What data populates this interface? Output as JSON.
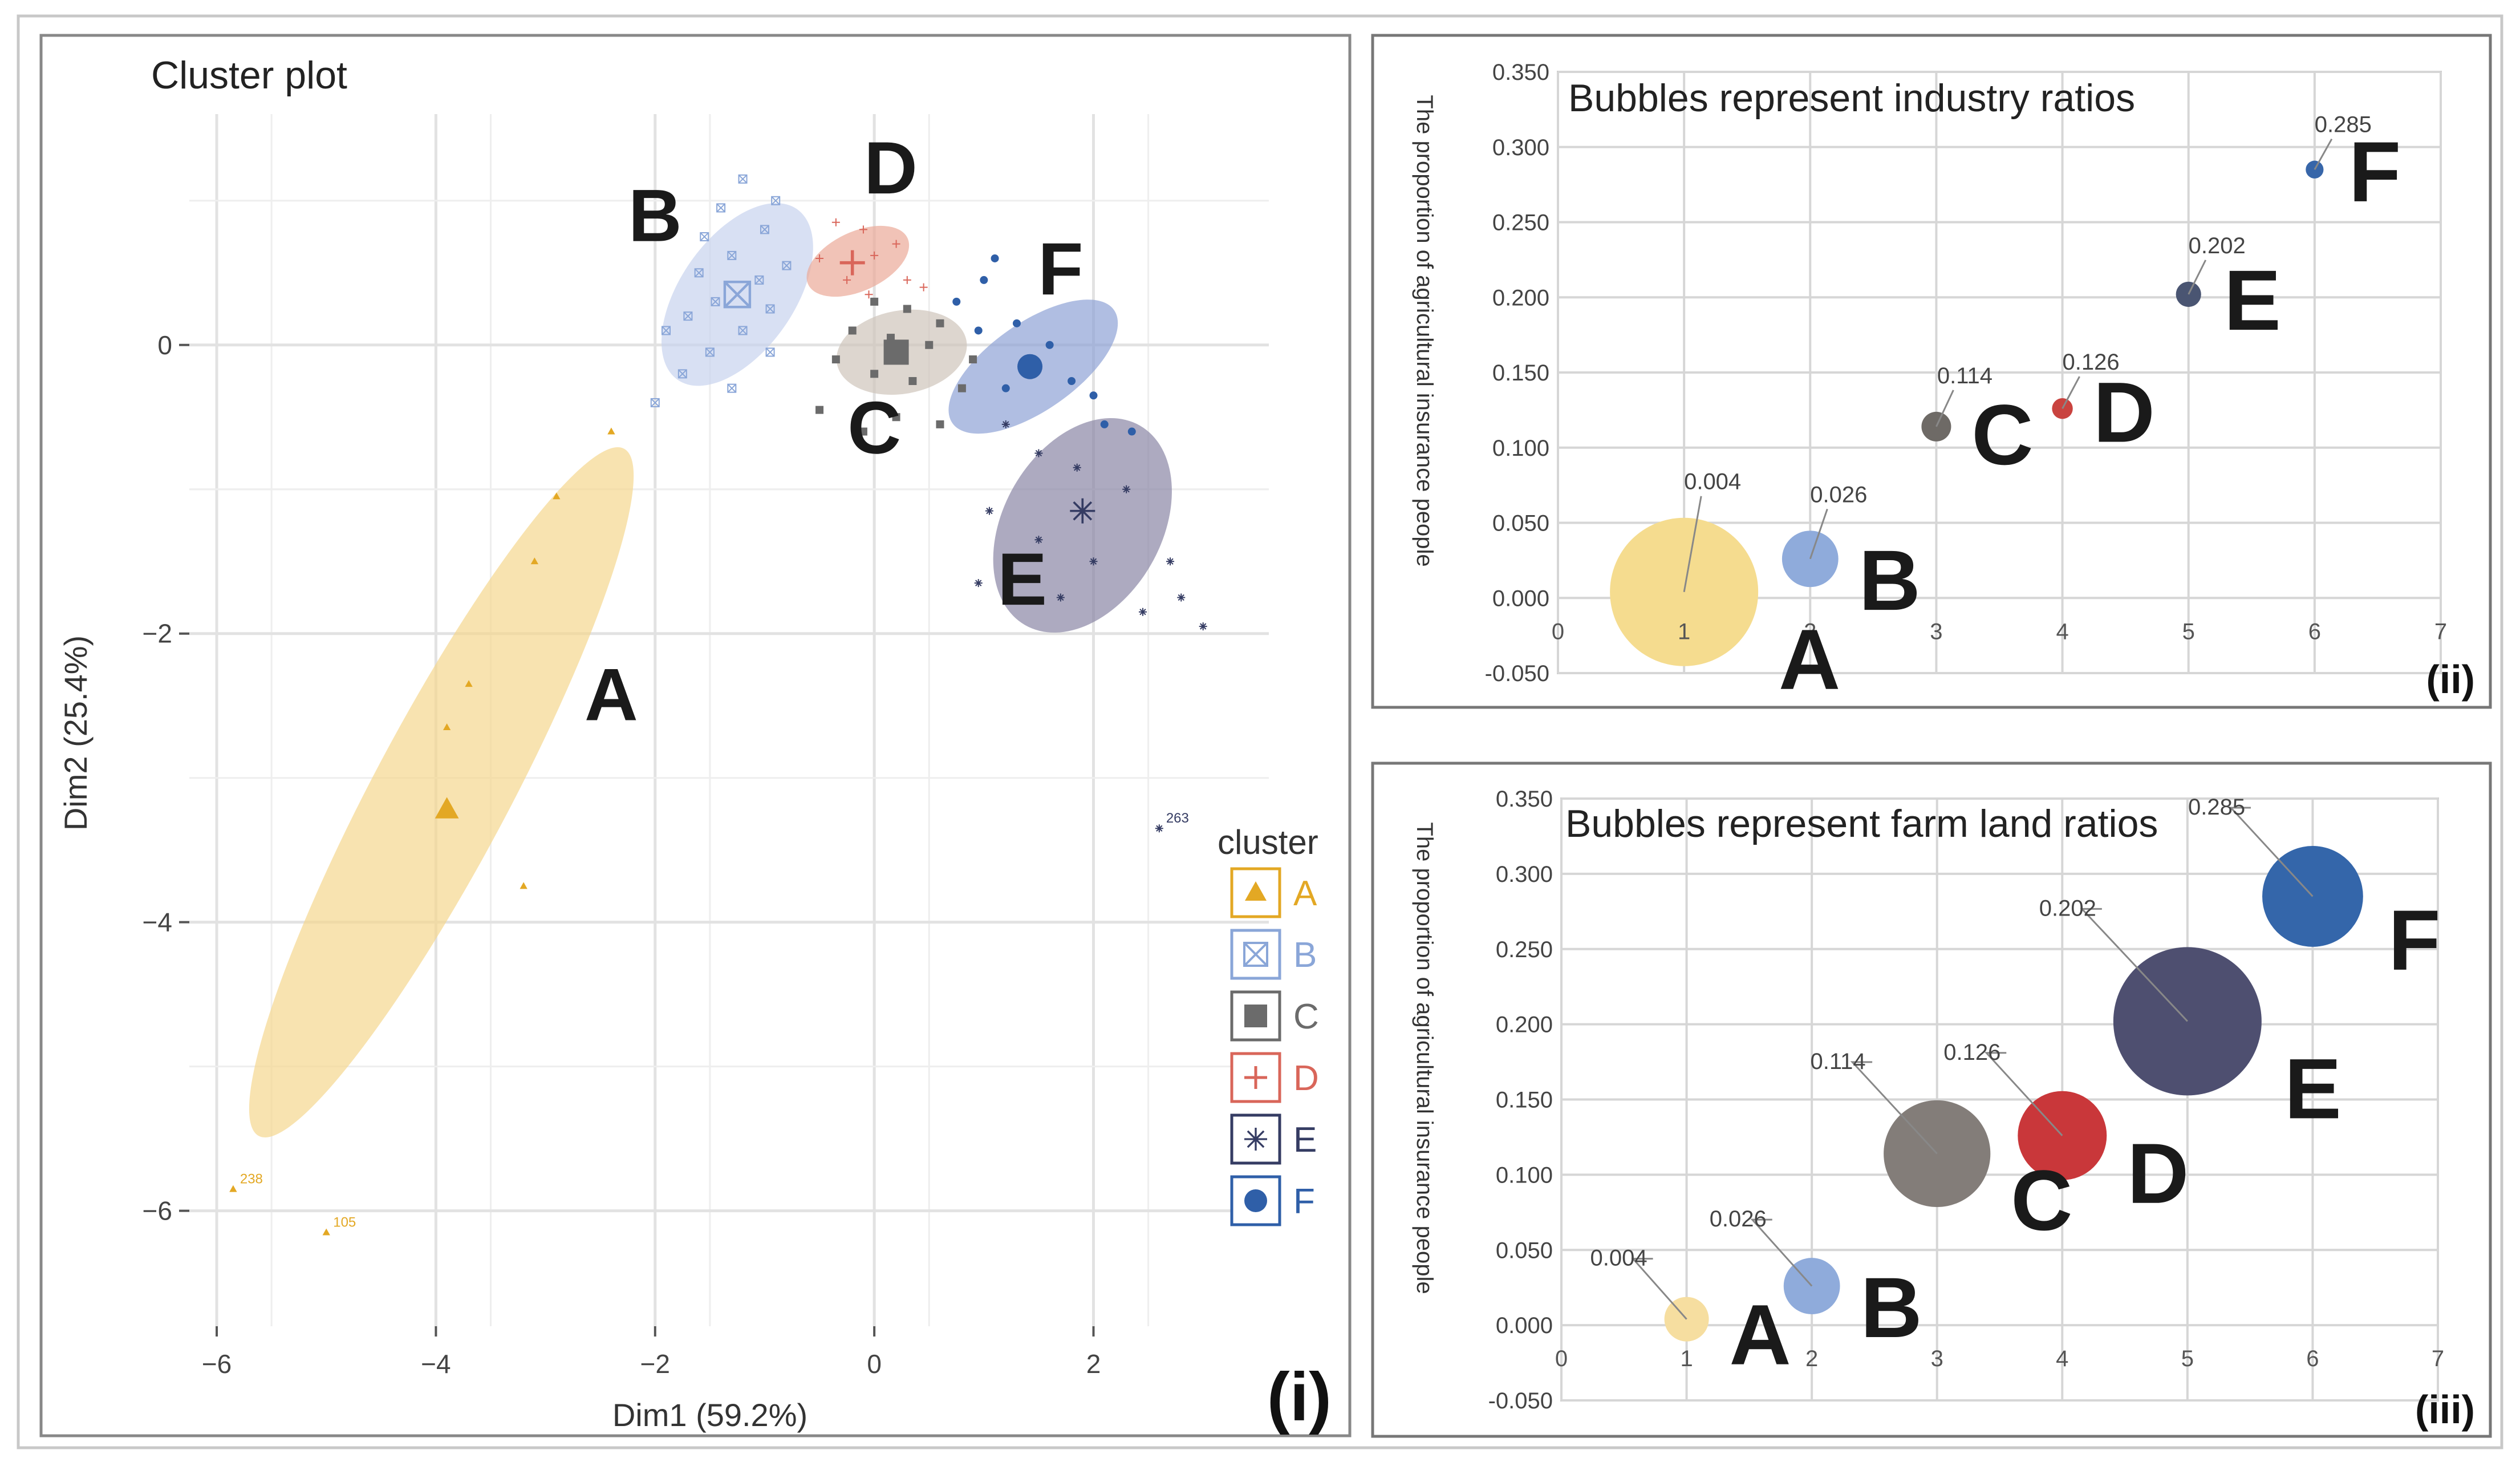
{
  "chart_data": [
    {
      "type": "scatter",
      "panel_label": "(i)",
      "title": "Cluster plot",
      "xlabel": "Dim1 (59.2%)",
      "ylabel": "Dim2 (25.4%)",
      "xticks": [
        -6,
        -4,
        -2,
        0,
        2
      ],
      "yticks": [
        0,
        -2,
        -4,
        -6
      ],
      "xlim": [
        -6.25,
        3.6
      ],
      "ylim": [
        -6.8,
        1.6
      ],
      "legend_title": "cluster",
      "legend_position": "right",
      "clusters": [
        {
          "name": "A",
          "color": "#e3a824",
          "fill": "#f5d78f",
          "marker": "triangle",
          "center": [
            -3.9,
            -3.22
          ],
          "ellipse": {
            "cx": -3.95,
            "cy": -3.1,
            "rx": 3.55,
            "ry": 0.62,
            "angle_deg": -62
          },
          "points": [
            [
              -2.4,
              -0.6
            ],
            [
              -2.9,
              -1.05
            ],
            [
              -3.1,
              -1.5
            ],
            [
              -3.7,
              -2.35
            ],
            [
              -3.9,
              -2.65
            ],
            [
              -3.2,
              -3.75
            ],
            [
              -5.85,
              -5.85
            ],
            [
              -5.0,
              -6.15
            ]
          ]
        },
        {
          "name": "B",
          "color": "#8aa6d8",
          "fill": "#c7d3ee",
          "marker": "boxx",
          "center": [
            -1.25,
            0.35
          ],
          "ellipse": {
            "cx": -1.25,
            "cy": 0.35,
            "rx": 0.95,
            "ry": 0.52,
            "angle_deg": -55
          },
          "points": [
            [
              -1.2,
              1.15
            ],
            [
              -0.9,
              1.0
            ],
            [
              -1.4,
              0.95
            ],
            [
              -1.0,
              0.8
            ],
            [
              -1.55,
              0.75
            ],
            [
              -1.3,
              0.62
            ],
            [
              -0.8,
              0.55
            ],
            [
              -1.6,
              0.5
            ],
            [
              -1.05,
              0.45
            ],
            [
              -1.45,
              0.3
            ],
            [
              -0.95,
              0.25
            ],
            [
              -1.7,
              0.2
            ],
            [
              -1.2,
              0.1
            ],
            [
              -1.9,
              0.1
            ],
            [
              -1.5,
              -0.05
            ],
            [
              -0.95,
              -0.05
            ],
            [
              -1.75,
              -0.2
            ],
            [
              -1.3,
              -0.3
            ],
            [
              -2.0,
              -0.4
            ]
          ]
        },
        {
          "name": "D",
          "color": "#d9665a",
          "fill": "#ebaa98",
          "marker": "plus",
          "center": [
            -0.2,
            0.57
          ],
          "ellipse": {
            "cx": -0.15,
            "cy": 0.58,
            "rx": 0.5,
            "ry": 0.27,
            "angle_deg": -25
          },
          "points": [
            [
              -0.35,
              0.85
            ],
            [
              -0.1,
              0.8
            ],
            [
              0.2,
              0.7
            ],
            [
              -0.5,
              0.6
            ],
            [
              0.0,
              0.62
            ],
            [
              -0.25,
              0.45
            ],
            [
              0.3,
              0.45
            ],
            [
              0.45,
              0.4
            ],
            [
              -0.05,
              0.35
            ]
          ]
        },
        {
          "name": "C",
          "color": "#6b6b6b",
          "fill": "#cfc4bb",
          "marker": "square",
          "center": [
            0.2,
            -0.05
          ],
          "ellipse": {
            "cx": 0.25,
            "cy": -0.05,
            "rx": 0.6,
            "ry": 0.38,
            "angle_deg": -10
          },
          "points": [
            [
              0.0,
              0.3
            ],
            [
              0.3,
              0.25
            ],
            [
              0.6,
              0.15
            ],
            [
              -0.2,
              0.1
            ],
            [
              0.15,
              0.05
            ],
            [
              0.5,
              0.0
            ],
            [
              -0.35,
              -0.1
            ],
            [
              0.0,
              -0.2
            ],
            [
              0.35,
              -0.25
            ],
            [
              0.8,
              -0.3
            ],
            [
              -0.5,
              -0.45
            ],
            [
              0.2,
              -0.5
            ],
            [
              0.6,
              -0.55
            ],
            [
              -0.1,
              -0.6
            ],
            [
              0.9,
              -0.1
            ]
          ]
        },
        {
          "name": "F",
          "color": "#2f5fa8",
          "fill": "#8fa3d6",
          "marker": "dot",
          "center": [
            1.42,
            -0.15
          ],
          "ellipse": {
            "cx": 1.45,
            "cy": -0.15,
            "rx": 0.9,
            "ry": 0.4,
            "angle_deg": -35
          },
          "points": [
            [
              0.75,
              0.3
            ],
            [
              1.0,
              0.45
            ],
            [
              1.1,
              0.6
            ],
            [
              0.95,
              0.1
            ],
            [
              1.3,
              0.15
            ],
            [
              1.6,
              0.0
            ],
            [
              1.45,
              -0.15
            ],
            [
              1.8,
              -0.25
            ],
            [
              2.0,
              -0.35
            ],
            [
              2.1,
              -0.55
            ],
            [
              1.2,
              -0.3
            ],
            [
              2.35,
              -0.6
            ]
          ]
        },
        {
          "name": "E",
          "color": "#353c63",
          "fill": "#8a86a5",
          "marker": "star",
          "center": [
            1.9,
            -1.15
          ],
          "ellipse": {
            "cx": 1.9,
            "cy": -1.25,
            "rx": 1.05,
            "ry": 0.72,
            "angle_deg": -60
          },
          "points": [
            [
              1.2,
              -0.55
            ],
            [
              1.5,
              -0.75
            ],
            [
              1.85,
              -0.85
            ],
            [
              2.3,
              -1.0
            ],
            [
              1.05,
              -1.15
            ],
            [
              1.5,
              -1.35
            ],
            [
              2.0,
              -1.5
            ],
            [
              2.7,
              -1.5
            ],
            [
              1.7,
              -1.75
            ],
            [
              2.45,
              -1.85
            ],
            [
              2.8,
              -1.75
            ],
            [
              3.0,
              -1.95
            ],
            [
              0.95,
              -1.65
            ],
            [
              2.6,
              -3.35
            ]
          ]
        }
      ],
      "point_labels": [
        {
          "text": "238",
          "x": -5.85,
          "y": -5.85,
          "color": "#e3a824"
        },
        {
          "text": "105",
          "x": -5.0,
          "y": -6.15,
          "color": "#e3a824"
        },
        {
          "text": "263",
          "x": 2.6,
          "y": -3.35,
          "color": "#353c63"
        }
      ],
      "cluster_labels": [
        {
          "text": "A",
          "x": -2.4,
          "y": -2.6
        },
        {
          "text": "B",
          "x": -2.0,
          "y": 0.72
        },
        {
          "text": "C",
          "x": 0.0,
          "y": -0.75
        },
        {
          "text": "D",
          "x": 0.15,
          "y": 1.05
        },
        {
          "text": "E",
          "x": 1.35,
          "y": -1.8
        },
        {
          "text": "F",
          "x": 1.7,
          "y": 0.35
        }
      ]
    },
    {
      "type": "scatter",
      "panel_label": "(ii)",
      "title": "Bubbles represent industry ratios",
      "ylabel": "The proportion of agricultural insurance people",
      "xlim": [
        0,
        7
      ],
      "ylim": [
        -0.05,
        0.35
      ],
      "xticks": [
        0,
        1,
        2,
        3,
        4,
        5,
        6,
        7
      ],
      "yticks": [
        "-0.050",
        "0.000",
        "0.050",
        "0.100",
        "0.150",
        "0.200",
        "0.250",
        "0.300",
        "0.350"
      ],
      "points": [
        {
          "label": "A",
          "x": 1,
          "y": 0.004,
          "text": "0.004",
          "color": "#f5dc8f",
          "size": 1.0
        },
        {
          "label": "B",
          "x": 2,
          "y": 0.026,
          "text": "0.026",
          "color": "#8fabdb",
          "size": 0.38
        },
        {
          "label": "C",
          "x": 3,
          "y": 0.114,
          "text": "0.114",
          "color": "#6e6a66",
          "size": 0.2
        },
        {
          "label": "D",
          "x": 4,
          "y": 0.126,
          "text": "0.126",
          "color": "#c9433f",
          "size": 0.14
        },
        {
          "label": "E",
          "x": 5,
          "y": 0.202,
          "text": "0.202",
          "color": "#4a5572",
          "size": 0.17
        },
        {
          "label": "F",
          "x": 6,
          "y": 0.285,
          "text": "0.285",
          "color": "#3766a9",
          "size": 0.12
        }
      ]
    },
    {
      "type": "scatter",
      "panel_label": "(iii)",
      "title": "Bubbles represent farm land ratios",
      "ylabel": "The proportion of agricultural insurance people",
      "xlim": [
        0,
        7
      ],
      "ylim": [
        -0.05,
        0.35
      ],
      "xticks": [
        0,
        1,
        2,
        3,
        4,
        5,
        6,
        7
      ],
      "yticks": [
        "-0.050",
        "0.000",
        "0.050",
        "0.100",
        "0.150",
        "0.200",
        "0.250",
        "0.300",
        "0.350"
      ],
      "points": [
        {
          "label": "A",
          "x": 1,
          "y": 0.004,
          "text": "0.004",
          "color": "#f6dea0",
          "size": 0.3
        },
        {
          "label": "B",
          "x": 2,
          "y": 0.026,
          "text": "0.026",
          "color": "#8fabdb",
          "size": 0.38
        },
        {
          "label": "C",
          "x": 3,
          "y": 0.114,
          "text": "0.114",
          "color": "#837d79",
          "size": 0.72
        },
        {
          "label": "D",
          "x": 4,
          "y": 0.126,
          "text": "0.126",
          "color": "#c9373a",
          "size": 0.6
        },
        {
          "label": "E",
          "x": 5,
          "y": 0.202,
          "text": "0.202",
          "color": "#4e4f70",
          "size": 1.0
        },
        {
          "label": "F",
          "x": 6,
          "y": 0.285,
          "text": "0.285",
          "color": "#3466aa",
          "size": 0.68
        }
      ]
    }
  ]
}
